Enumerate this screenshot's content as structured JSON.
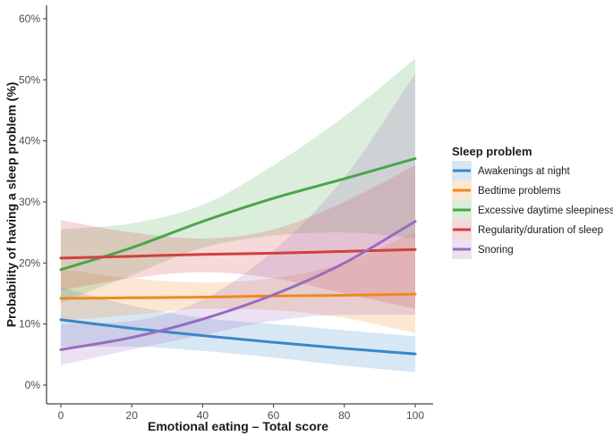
{
  "chart_data": {
    "type": "line",
    "xlabel": "Emotional eating – Total score",
    "ylabel": "Probability of having a sleep problem (%)",
    "xlim": [
      0,
      100
    ],
    "ylim": [
      0,
      60
    ],
    "x_ticks": [
      0,
      20,
      40,
      60,
      80,
      100
    ],
    "y_ticks": [
      0,
      10,
      20,
      30,
      40,
      50,
      60
    ],
    "y_tick_suffix": "%",
    "grid": false,
    "legend": {
      "title": "Sleep problem",
      "placement": "right"
    },
    "confidence_bands": true,
    "series": [
      {
        "name": "Awakenings at night",
        "color": "#3b86c6",
        "x": [
          0,
          20,
          40,
          60,
          80,
          100
        ],
        "values": [
          10.7,
          9.3,
          8.1,
          7.0,
          6.0,
          5.1
        ],
        "lower": [
          6.3,
          6.3,
          5.6,
          4.5,
          3.2,
          2.1
        ],
        "upper": [
          16.0,
          13.0,
          11.0,
          10.0,
          9.0,
          8.0
        ]
      },
      {
        "name": "Bedtime problems",
        "color": "#f0891f",
        "x": [
          0,
          20,
          40,
          60,
          80,
          100
        ],
        "values": [
          14.2,
          14.3,
          14.4,
          14.6,
          14.7,
          14.9
        ],
        "lower": [
          10.5,
          11.5,
          12.5,
          12.3,
          11.0,
          8.5
        ],
        "upper": [
          19.0,
          17.5,
          16.8,
          17.5,
          20.0,
          25.0
        ]
      },
      {
        "name": "Excessive daytime sleepiness",
        "color": "#4aa64a",
        "x": [
          0,
          20,
          40,
          60,
          80,
          100
        ],
        "values": [
          18.9,
          22.5,
          26.8,
          30.6,
          33.8,
          37.1
        ],
        "lower": [
          13.5,
          18.0,
          22.5,
          24.5,
          25.0,
          24.0
        ],
        "upper": [
          25.5,
          26.5,
          29.5,
          36.0,
          44.0,
          53.5
        ]
      },
      {
        "name": "Regularity/duration of sleep",
        "color": "#d1403f",
        "x": [
          0,
          20,
          40,
          60,
          80,
          100
        ],
        "values": [
          20.8,
          21.1,
          21.4,
          21.6,
          21.9,
          22.2
        ],
        "lower": [
          15.5,
          17.5,
          18.5,
          17.5,
          15.0,
          12.5
        ],
        "upper": [
          27.0,
          25.0,
          24.0,
          25.5,
          30.0,
          36.0
        ]
      },
      {
        "name": "Snoring",
        "color": "#9a6bc0",
        "x": [
          0,
          20,
          40,
          60,
          80,
          100
        ],
        "values": [
          5.8,
          7.8,
          10.8,
          14.8,
          20.0,
          26.8
        ],
        "lower": [
          3.3,
          5.8,
          8.2,
          10.5,
          11.5,
          11.5
        ],
        "upper": [
          10.0,
          10.5,
          14.0,
          22.0,
          34.0,
          51.0
        ]
      }
    ]
  }
}
